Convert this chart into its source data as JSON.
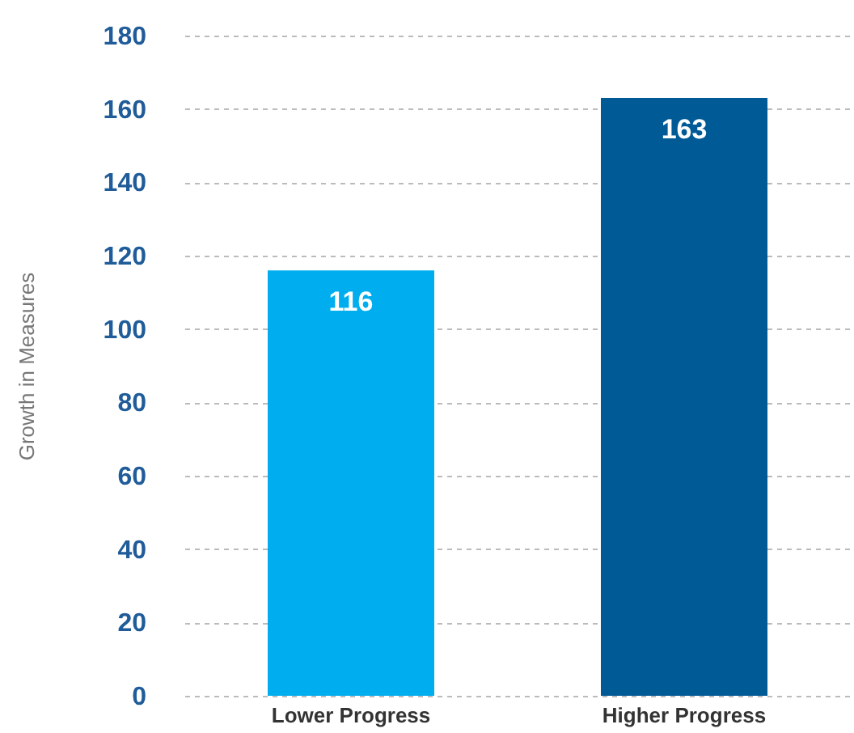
{
  "chart_data": {
    "type": "bar",
    "ylabel": "Growth in Measures",
    "categories": [
      "Lower Progress",
      "Higher Progress"
    ],
    "values": [
      116,
      163
    ],
    "colors": [
      "#00aeef",
      "#005a96"
    ],
    "ylim": [
      0,
      180
    ],
    "yticks": [
      0,
      20,
      40,
      60,
      80,
      100,
      120,
      140,
      160,
      180
    ],
    "grid": "y",
    "data_labels": true
  }
}
